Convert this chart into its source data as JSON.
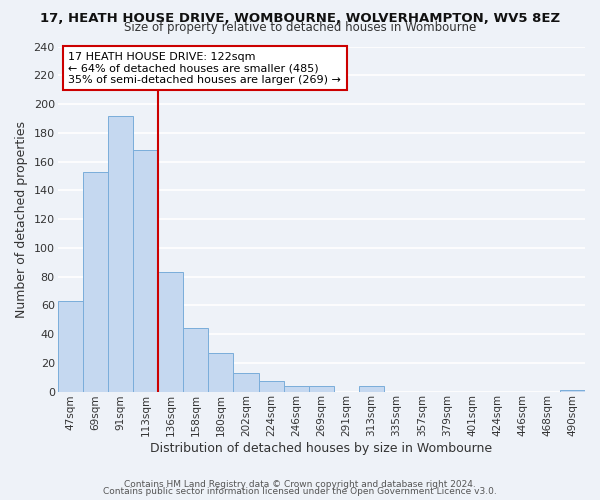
{
  "title": "17, HEATH HOUSE DRIVE, WOMBOURNE, WOLVERHAMPTON, WV5 8EZ",
  "subtitle": "Size of property relative to detached houses in Wombourne",
  "xlabel": "Distribution of detached houses by size in Wombourne",
  "ylabel": "Number of detached properties",
  "bar_labels": [
    "47sqm",
    "69sqm",
    "91sqm",
    "113sqm",
    "136sqm",
    "158sqm",
    "180sqm",
    "202sqm",
    "224sqm",
    "246sqm",
    "269sqm",
    "291sqm",
    "313sqm",
    "335sqm",
    "357sqm",
    "379sqm",
    "401sqm",
    "424sqm",
    "446sqm",
    "468sqm",
    "490sqm"
  ],
  "bar_values": [
    63,
    153,
    192,
    168,
    83,
    44,
    27,
    13,
    7,
    4,
    4,
    0,
    4,
    0,
    0,
    0,
    0,
    0,
    0,
    0,
    1
  ],
  "bar_color": "#c5d8f0",
  "bar_edge_color": "#7aadda",
  "vline_color": "#cc0000",
  "vline_x_idx": 3,
  "annotation_line1": "17 HEATH HOUSE DRIVE: 122sqm",
  "annotation_line2": "← 64% of detached houses are smaller (485)",
  "annotation_line3": "35% of semi-detached houses are larger (269) →",
  "annotation_box_color": "#ffffff",
  "annotation_box_edge": "#cc0000",
  "ylim": [
    0,
    240
  ],
  "yticks": [
    0,
    20,
    40,
    60,
    80,
    100,
    120,
    140,
    160,
    180,
    200,
    220,
    240
  ],
  "footer1": "Contains HM Land Registry data © Crown copyright and database right 2024.",
  "footer2": "Contains public sector information licensed under the Open Government Licence v3.0.",
  "bg_color": "#eef2f8",
  "grid_color": "#ffffff",
  "title_fontsize": 9.5,
  "subtitle_fontsize": 8.5
}
